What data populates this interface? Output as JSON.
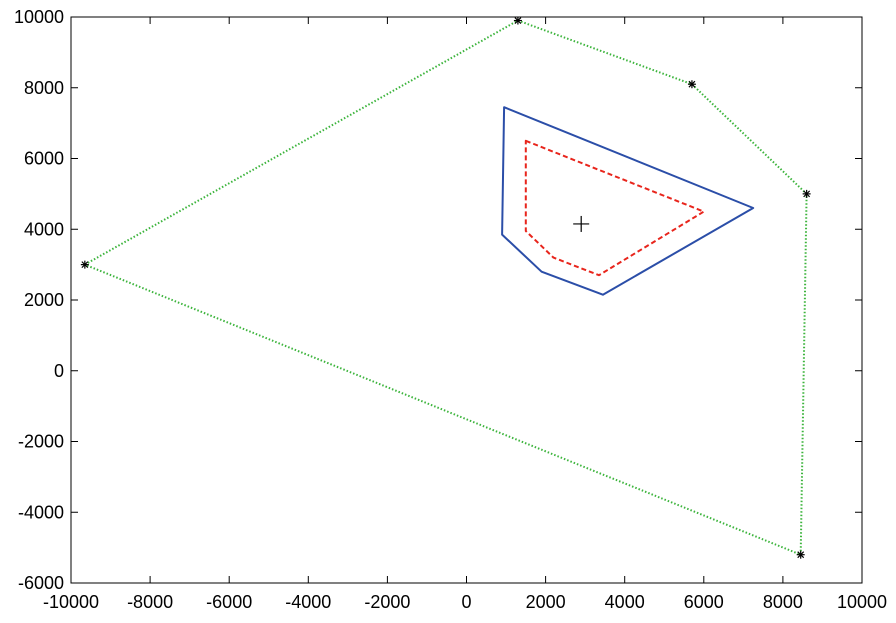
{
  "chart_data": {
    "type": "line",
    "title": "",
    "xlabel": "",
    "ylabel": "",
    "xlim": [
      -10000,
      10000
    ],
    "ylim": [
      -6000,
      10000
    ],
    "xticks": [
      -10000,
      -8000,
      -6000,
      -4000,
      -2000,
      0,
      2000,
      4000,
      6000,
      8000,
      10000
    ],
    "yticks": [
      -6000,
      -4000,
      -2000,
      0,
      2000,
      4000,
      6000,
      8000,
      10000
    ],
    "xtick_labels": [
      "-10000",
      "-8000",
      "-6000",
      "-4000",
      "-2000",
      "0",
      "2000",
      "4000",
      "6000",
      "8000",
      "10000"
    ],
    "ytick_labels": [
      "-6000",
      "-4000",
      "-2000",
      "0",
      "2000",
      "4000",
      "6000",
      "8000",
      "10000"
    ],
    "grid": false,
    "series": [
      {
        "style": "dotted",
        "color": "#3cb43c",
        "marker": "asterisk",
        "closed": true,
        "x": [
          -9650,
          1300,
          5700,
          8600,
          8450
        ],
        "y": [
          3000,
          9900,
          8100,
          5000,
          -5200
        ]
      },
      {
        "style": "solid",
        "color": "#2b4ea8",
        "marker": "none",
        "closed": true,
        "x": [
          950,
          7250,
          3450,
          1900,
          900
        ],
        "y": [
          7450,
          4600,
          2150,
          2800,
          3850
        ]
      },
      {
        "style": "dashed",
        "color": "#e8251c",
        "marker": "none",
        "closed": true,
        "x": [
          1500,
          6000,
          3350,
          2200,
          1500
        ],
        "y": [
          6500,
          4500,
          2700,
          3200,
          3950
        ]
      },
      {
        "style": "none",
        "color": "#000000",
        "marker": "plus",
        "closed": false,
        "x": [
          2900
        ],
        "y": [
          4150
        ]
      }
    ]
  }
}
